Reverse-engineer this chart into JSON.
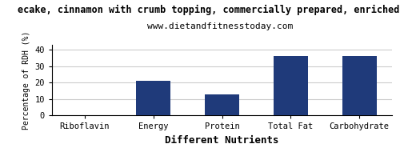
{
  "title": "ecake, cinnamon with crumb topping, commercially prepared, enriched per",
  "subtitle": "www.dietandfitnesstoday.com",
  "xlabel": "Different Nutrients",
  "ylabel": "Percentage of RDH (%)",
  "categories": [
    "Riboflavin",
    "Energy",
    "Protein",
    "Total Fat",
    "Carbohydrate"
  ],
  "values": [
    0,
    21,
    12.5,
    36,
    36
  ],
  "bar_color": "#1F3A7A",
  "ylim": [
    0,
    43
  ],
  "yticks": [
    0,
    10,
    20,
    30,
    40
  ],
  "title_fontsize": 8.5,
  "subtitle_fontsize": 8,
  "xlabel_fontsize": 9,
  "ylabel_fontsize": 7,
  "tick_fontsize": 7.5,
  "background_color": "#ffffff",
  "grid_color": "#cccccc"
}
